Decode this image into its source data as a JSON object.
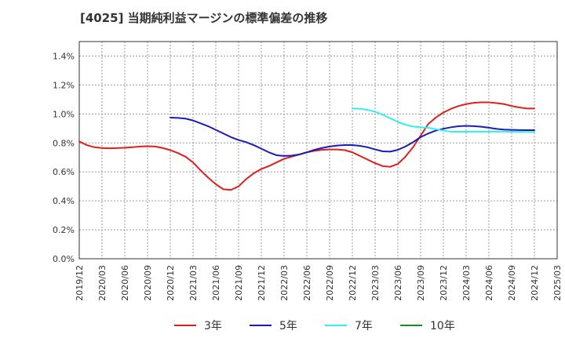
{
  "chart_data": {
    "type": "line",
    "title": "[4025]  当期純利益マージンの標準偏差の推移",
    "x_tick_labels": [
      "2019/12",
      "2020/03",
      "2020/06",
      "2020/09",
      "2020/12",
      "2021/03",
      "2021/06",
      "2021/09",
      "2021/12",
      "2022/03",
      "2022/06",
      "2022/09",
      "2022/12",
      "2023/03",
      "2023/06",
      "2023/09",
      "2023/12",
      "2024/03",
      "2024/06",
      "2024/09",
      "2024/12",
      "2025/03"
    ],
    "y_tick_labels": [
      "0.0%",
      "0.2%",
      "0.4%",
      "0.6%",
      "0.8%",
      "1.0%",
      "1.2%",
      "1.4%"
    ],
    "ylim": [
      0,
      1.5
    ],
    "grid": true,
    "legend_position": "bottom",
    "series": [
      {
        "name": "3年",
        "color": "#dd1f1f",
        "points": [
          [
            "2019/12",
            0.81
          ],
          [
            "2020/01",
            0.785
          ],
          [
            "2020/02",
            0.77
          ],
          [
            "2020/03",
            0.765
          ],
          [
            "2020/04",
            0.763
          ],
          [
            "2020/05",
            0.764
          ],
          [
            "2020/06",
            0.767
          ],
          [
            "2020/07",
            0.77
          ],
          [
            "2020/08",
            0.775
          ],
          [
            "2020/09",
            0.777
          ],
          [
            "2020/10",
            0.775
          ],
          [
            "2020/11",
            0.765
          ],
          [
            "2020/12",
            0.75
          ],
          [
            "2021/01",
            0.73
          ],
          [
            "2021/02",
            0.705
          ],
          [
            "2021/03",
            0.665
          ],
          [
            "2021/04",
            0.61
          ],
          [
            "2021/05",
            0.56
          ],
          [
            "2021/06",
            0.515
          ],
          [
            "2021/07",
            0.48
          ],
          [
            "2021/08",
            0.475
          ],
          [
            "2021/09",
            0.5
          ],
          [
            "2021/10",
            0.55
          ],
          [
            "2021/11",
            0.59
          ],
          [
            "2021/12",
            0.62
          ],
          [
            "2022/01",
            0.64
          ],
          [
            "2022/02",
            0.665
          ],
          [
            "2022/03",
            0.69
          ],
          [
            "2022/04",
            0.705
          ],
          [
            "2022/05",
            0.72
          ],
          [
            "2022/06",
            0.735
          ],
          [
            "2022/07",
            0.745
          ],
          [
            "2022/08",
            0.752
          ],
          [
            "2022/09",
            0.755
          ],
          [
            "2022/10",
            0.755
          ],
          [
            "2022/11",
            0.75
          ],
          [
            "2022/12",
            0.735
          ],
          [
            "2023/01",
            0.71
          ],
          [
            "2023/02",
            0.685
          ],
          [
            "2023/03",
            0.66
          ],
          [
            "2023/04",
            0.64
          ],
          [
            "2023/05",
            0.635
          ],
          [
            "2023/06",
            0.655
          ],
          [
            "2023/07",
            0.705
          ],
          [
            "2023/08",
            0.77
          ],
          [
            "2023/09",
            0.85
          ],
          [
            "2023/10",
            0.93
          ],
          [
            "2023/11",
            0.975
          ],
          [
            "2023/12",
            1.01
          ],
          [
            "2024/01",
            1.035
          ],
          [
            "2024/02",
            1.055
          ],
          [
            "2024/03",
            1.068
          ],
          [
            "2024/04",
            1.077
          ],
          [
            "2024/05",
            1.08
          ],
          [
            "2024/06",
            1.08
          ],
          [
            "2024/07",
            1.075
          ],
          [
            "2024/08",
            1.068
          ],
          [
            "2024/09",
            1.055
          ],
          [
            "2024/10",
            1.045
          ],
          [
            "2024/11",
            1.038
          ],
          [
            "2024/12",
            1.038
          ]
        ]
      },
      {
        "name": "5年",
        "color": "#1a1ab8",
        "points": [
          [
            "2020/12",
            0.975
          ],
          [
            "2021/01",
            0.973
          ],
          [
            "2021/02",
            0.968
          ],
          [
            "2021/03",
            0.955
          ],
          [
            "2021/04",
            0.935
          ],
          [
            "2021/05",
            0.915
          ],
          [
            "2021/06",
            0.89
          ],
          [
            "2021/07",
            0.865
          ],
          [
            "2021/08",
            0.84
          ],
          [
            "2021/09",
            0.82
          ],
          [
            "2021/10",
            0.805
          ],
          [
            "2021/11",
            0.785
          ],
          [
            "2021/12",
            0.76
          ],
          [
            "2022/01",
            0.735
          ],
          [
            "2022/02",
            0.715
          ],
          [
            "2022/03",
            0.71
          ],
          [
            "2022/04",
            0.712
          ],
          [
            "2022/05",
            0.72
          ],
          [
            "2022/06",
            0.735
          ],
          [
            "2022/07",
            0.752
          ],
          [
            "2022/08",
            0.765
          ],
          [
            "2022/09",
            0.775
          ],
          [
            "2022/10",
            0.782
          ],
          [
            "2022/11",
            0.785
          ],
          [
            "2022/12",
            0.785
          ],
          [
            "2023/01",
            0.78
          ],
          [
            "2023/02",
            0.77
          ],
          [
            "2023/03",
            0.755
          ],
          [
            "2023/04",
            0.742
          ],
          [
            "2023/05",
            0.74
          ],
          [
            "2023/06",
            0.752
          ],
          [
            "2023/07",
            0.775
          ],
          [
            "2023/08",
            0.805
          ],
          [
            "2023/09",
            0.84
          ],
          [
            "2023/10",
            0.865
          ],
          [
            "2023/11",
            0.885
          ],
          [
            "2023/12",
            0.898
          ],
          [
            "2024/01",
            0.908
          ],
          [
            "2024/02",
            0.915
          ],
          [
            "2024/03",
            0.918
          ],
          [
            "2024/04",
            0.916
          ],
          [
            "2024/05",
            0.912
          ],
          [
            "2024/06",
            0.905
          ],
          [
            "2024/07",
            0.897
          ],
          [
            "2024/08",
            0.892
          ],
          [
            "2024/09",
            0.89
          ],
          [
            "2024/10",
            0.889
          ],
          [
            "2024/11",
            0.888
          ],
          [
            "2024/12",
            0.888
          ]
        ]
      },
      {
        "name": "7年",
        "color": "#33eeee",
        "points": [
          [
            "2022/12",
            1.038
          ],
          [
            "2023/01",
            1.036
          ],
          [
            "2023/02",
            1.028
          ],
          [
            "2023/03",
            1.015
          ],
          [
            "2023/04",
            0.995
          ],
          [
            "2023/05",
            0.97
          ],
          [
            "2023/06",
            0.945
          ],
          [
            "2023/07",
            0.925
          ],
          [
            "2023/08",
            0.913
          ],
          [
            "2023/09",
            0.908
          ],
          [
            "2023/10",
            0.905
          ],
          [
            "2023/11",
            0.895
          ],
          [
            "2023/12",
            0.885
          ],
          [
            "2024/01",
            0.878
          ],
          [
            "2024/02",
            0.877
          ],
          [
            "2024/03",
            0.877
          ],
          [
            "2024/04",
            0.878
          ],
          [
            "2024/05",
            0.878
          ],
          [
            "2024/06",
            0.878
          ],
          [
            "2024/07",
            0.878
          ],
          [
            "2024/08",
            0.878
          ],
          [
            "2024/09",
            0.877
          ],
          [
            "2024/10",
            0.876
          ],
          [
            "2024/11",
            0.876
          ],
          [
            "2024/12",
            0.876
          ]
        ]
      },
      {
        "name": "10年",
        "color": "#1f8a1f",
        "points": []
      }
    ]
  }
}
